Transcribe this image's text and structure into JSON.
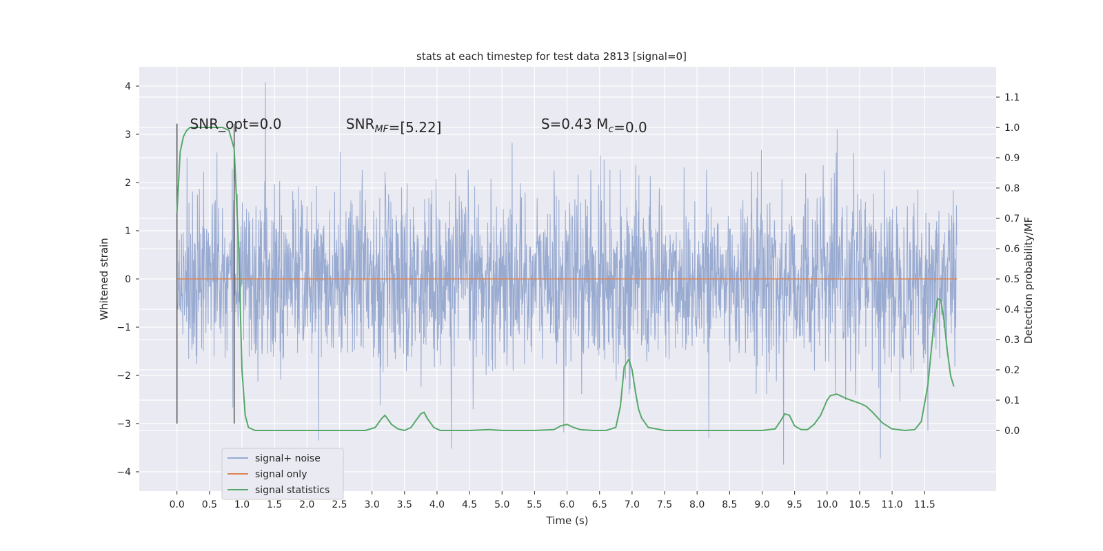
{
  "chart_data": {
    "type": "line",
    "title": "stats at each timestep for test data 2813 [signal=0]",
    "xlabel": "Time (s)",
    "ylabel": "Whitened strain",
    "y2label": "Detection probability/MF",
    "xlim": [
      -0.58,
      12.6
    ],
    "ylim": [
      -4.4,
      4.4
    ],
    "y2lim": [
      -0.2,
      1.2
    ],
    "xticks": [
      "0.0",
      "0.5",
      "1.0",
      "1.5",
      "2.0",
      "2.5",
      "3.0",
      "3.5",
      "4.0",
      "4.5",
      "5.0",
      "5.5",
      "6.0",
      "6.5",
      "7.0",
      "7.5",
      "8.0",
      "8.5",
      "9.0",
      "9.5",
      "10.0",
      "10.5",
      "11.0",
      "11.5"
    ],
    "yticks": [
      "4",
      "3",
      "2",
      "1",
      "0",
      "−1",
      "−2",
      "−3",
      "−4"
    ],
    "y2ticks": [
      "1.1",
      "1.0",
      "0.9",
      "0.8",
      "0.7",
      "0.6",
      "0.5",
      "0.4",
      "0.3",
      "0.2",
      "0.1",
      "0.0"
    ],
    "grid": true,
    "legend_position": "lower-left",
    "annotations": [
      {
        "text": "SNR_opt=0.0",
        "x": 0.2,
        "y": 3.2
      },
      {
        "text": "SNR_MF=[5.22]",
        "x": 2.6,
        "y": 3.2
      },
      {
        "text": "S=0.43   M_c=0.0",
        "x": 5.6,
        "y": 3.2
      }
    ],
    "vlines": [
      {
        "x": 0.0,
        "y0": -3.0,
        "y1": 3.22
      },
      {
        "x": 0.88,
        "y0": -3.0,
        "y1": 3.22
      }
    ],
    "series": [
      {
        "name": "signal+ noise",
        "color": "#98aad0",
        "axis": "left",
        "noise": {
          "x_start": 0.0,
          "x_end": 12.0,
          "step": 0.005,
          "sigma": 0.9,
          "peaks": [
            {
              "x": 1.36,
              "y": 4.08
            },
            {
              "x": 2.18,
              "y": -3.35
            },
            {
              "x": 4.22,
              "y": -3.52
            },
            {
              "x": 9.33,
              "y": -3.85
            },
            {
              "x": 10.82,
              "y": -3.72
            },
            {
              "x": 8.18,
              "y": -3.3
            },
            {
              "x": 5.95,
              "y": -3.18
            },
            {
              "x": 11.55,
              "y": -3.15
            }
          ]
        }
      },
      {
        "name": "signal only",
        "color": "#dd8452",
        "axis": "left",
        "x": [
          0.0,
          12.0
        ],
        "y": [
          0.0,
          0.0
        ]
      },
      {
        "name": "signal statistics",
        "color": "#55a868",
        "axis": "right",
        "x": [
          0.0,
          0.05,
          0.1,
          0.15,
          0.2,
          0.3,
          0.5,
          0.7,
          0.8,
          0.88,
          0.95,
          1.0,
          1.05,
          1.1,
          1.2,
          1.5,
          2.0,
          2.5,
          2.9,
          3.05,
          3.15,
          3.2,
          3.3,
          3.4,
          3.5,
          3.6,
          3.7,
          3.75,
          3.8,
          3.85,
          3.95,
          4.05,
          4.2,
          4.5,
          4.8,
          5.0,
          5.5,
          5.8,
          5.9,
          6.0,
          6.1,
          6.2,
          6.4,
          6.6,
          6.75,
          6.82,
          6.88,
          6.95,
          7.0,
          7.05,
          7.1,
          7.15,
          7.25,
          7.5,
          8.0,
          8.5,
          9.0,
          9.2,
          9.28,
          9.35,
          9.42,
          9.5,
          9.6,
          9.7,
          9.8,
          9.9,
          10.0,
          10.05,
          10.15,
          10.3,
          10.5,
          10.6,
          10.7,
          10.85,
          11.0,
          11.2,
          11.35,
          11.45,
          11.55,
          11.6,
          11.65,
          11.7,
          11.75,
          11.8,
          11.85,
          11.9,
          11.95
        ],
        "y": [
          0.72,
          0.92,
          0.97,
          0.99,
          1.0,
          1.0,
          1.0,
          1.0,
          0.99,
          0.93,
          0.6,
          0.2,
          0.05,
          0.01,
          0.0,
          0.0,
          0.0,
          0.0,
          0.0,
          0.01,
          0.04,
          0.05,
          0.02,
          0.005,
          0.0,
          0.01,
          0.04,
          0.055,
          0.06,
          0.04,
          0.01,
          0.0,
          0.0,
          0.0,
          0.003,
          0.0,
          0.0,
          0.003,
          0.015,
          0.02,
          0.01,
          0.003,
          0.0,
          0.0,
          0.01,
          0.08,
          0.21,
          0.235,
          0.2,
          0.13,
          0.07,
          0.04,
          0.01,
          0.0,
          0.0,
          0.0,
          0.0,
          0.005,
          0.03,
          0.055,
          0.05,
          0.015,
          0.003,
          0.003,
          0.02,
          0.05,
          0.1,
          0.115,
          0.12,
          0.105,
          0.09,
          0.08,
          0.06,
          0.025,
          0.005,
          0.0,
          0.003,
          0.03,
          0.15,
          0.26,
          0.37,
          0.435,
          0.43,
          0.36,
          0.26,
          0.18,
          0.145
        ]
      }
    ]
  }
}
